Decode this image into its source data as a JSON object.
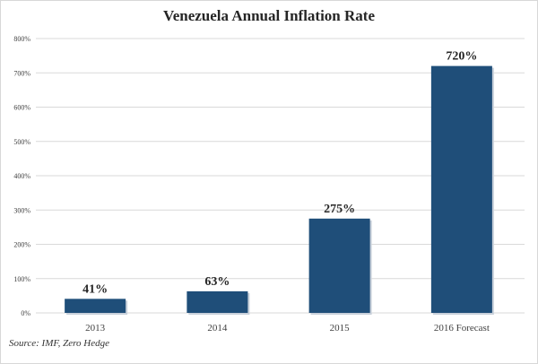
{
  "chart_data": {
    "type": "bar",
    "title": "Venezuela Annual Inflation Rate",
    "categories": [
      "2013",
      "2014",
      "2015",
      "2016 Forecast"
    ],
    "values": [
      41,
      63,
      275,
      720
    ],
    "data_labels": [
      "41%",
      "63%",
      "275%",
      "720%"
    ],
    "xlabel": "",
    "ylabel": "",
    "ylim": [
      0,
      800
    ],
    "yticks": [
      0,
      100,
      200,
      300,
      400,
      500,
      600,
      700,
      800
    ],
    "ytick_labels": [
      "0%",
      "100%",
      "200%",
      "300%",
      "400%",
      "500%",
      "600%",
      "700%",
      "800%"
    ],
    "grid": true,
    "bar_color": "#1f4e79",
    "source": "Source: IMF, Zero Hedge"
  }
}
